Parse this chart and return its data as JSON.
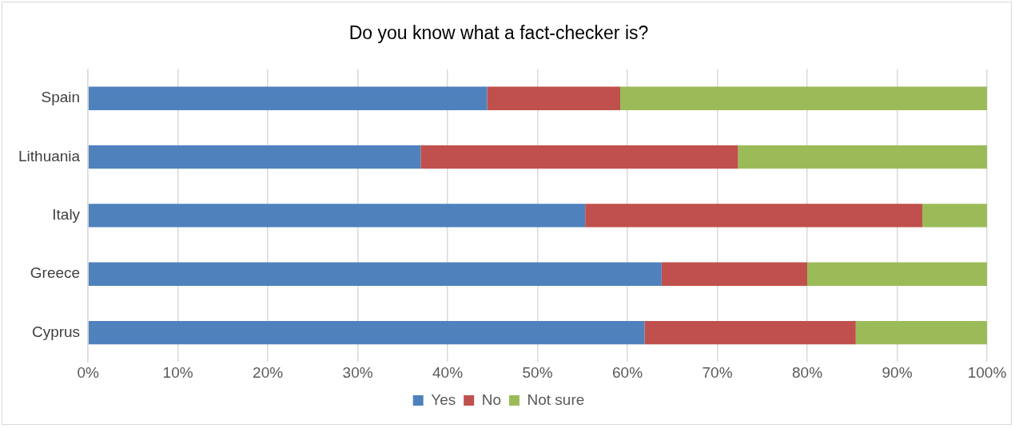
{
  "chart_data": {
    "type": "bar",
    "orientation": "horizontal",
    "stacked": true,
    "title": "Do you know what a fact-checker is?",
    "categories": [
      "Spain",
      "Lithuania",
      "Italy",
      "Greece",
      "Cyprus"
    ],
    "series": [
      {
        "name": "Yes",
        "color": "#4f81bd",
        "values": [
          44.4,
          37.0,
          55.3,
          63.8,
          61.9
        ]
      },
      {
        "name": "No",
        "color": "#c0504d",
        "values": [
          14.8,
          35.3,
          37.5,
          16.2,
          23.5
        ]
      },
      {
        "name": "Not sure",
        "color": "#9bbb59",
        "values": [
          40.8,
          27.7,
          7.2,
          20.0,
          14.6
        ]
      }
    ],
    "xlim": [
      0,
      100
    ],
    "xticks": [
      {
        "value": 0,
        "label": "0%"
      },
      {
        "value": 10,
        "label": "10%"
      },
      {
        "value": 20,
        "label": "20%"
      },
      {
        "value": 30,
        "label": "30%"
      },
      {
        "value": 40,
        "label": "40%"
      },
      {
        "value": 50,
        "label": "50%"
      },
      {
        "value": 60,
        "label": "60%"
      },
      {
        "value": 70,
        "label": "70%"
      },
      {
        "value": 80,
        "label": "80%"
      },
      {
        "value": 90,
        "label": "90%"
      },
      {
        "value": 100,
        "label": "100%"
      }
    ],
    "grid": "x",
    "legend": "bottom"
  }
}
